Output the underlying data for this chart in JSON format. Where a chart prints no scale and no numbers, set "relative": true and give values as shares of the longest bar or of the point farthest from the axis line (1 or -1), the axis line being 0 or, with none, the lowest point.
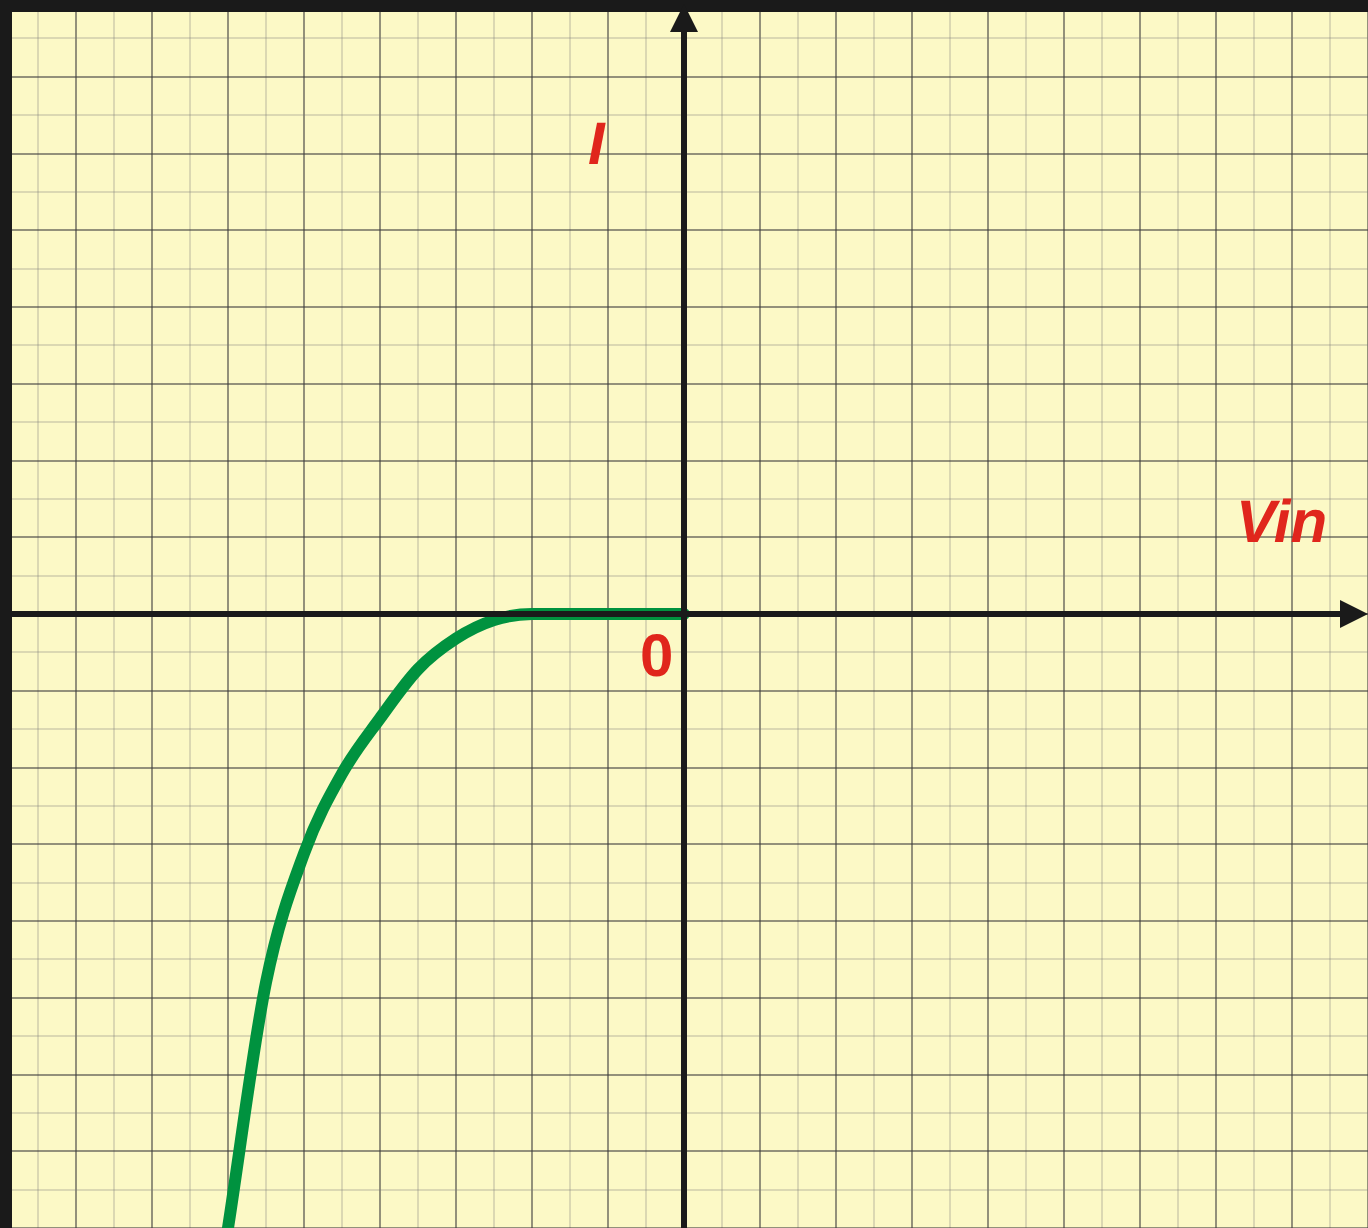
{
  "chart_data": {
    "type": "line",
    "relative": true,
    "xlabel": "Vin",
    "annotations": [
      "I",
      "0"
    ],
    "categories": [
      null,
      null,
      null,
      null,
      null,
      null,
      null,
      null,
      null,
      null,
      null,
      null,
      null,
      null,
      null,
      null,
      null,
      null,
      null,
      null,
      null,
      null,
      null,
      null,
      null,
      null,
      null,
      null,
      null,
      null,
      null,
      null,
      null,
      null,
      null,
      null,
      null
    ],
    "series": [
      {
        "color": "#00923f",
        "values": [
          null,
          null,
          null,
          null,
          null,
          null,
          -1,
          -0.6,
          -0.39,
          -0.26,
          -0.17,
          -0.09,
          -0.04,
          -0.01,
          0,
          0,
          0,
          0,
          0,
          null,
          null,
          null,
          null,
          null,
          null,
          null,
          null,
          null,
          null,
          null,
          null,
          null,
          null,
          null,
          null,
          null,
          null
        ]
      }
    ],
    "grid": true,
    "legend": false,
    "marker": "none",
    "line_style": "solid"
  }
}
